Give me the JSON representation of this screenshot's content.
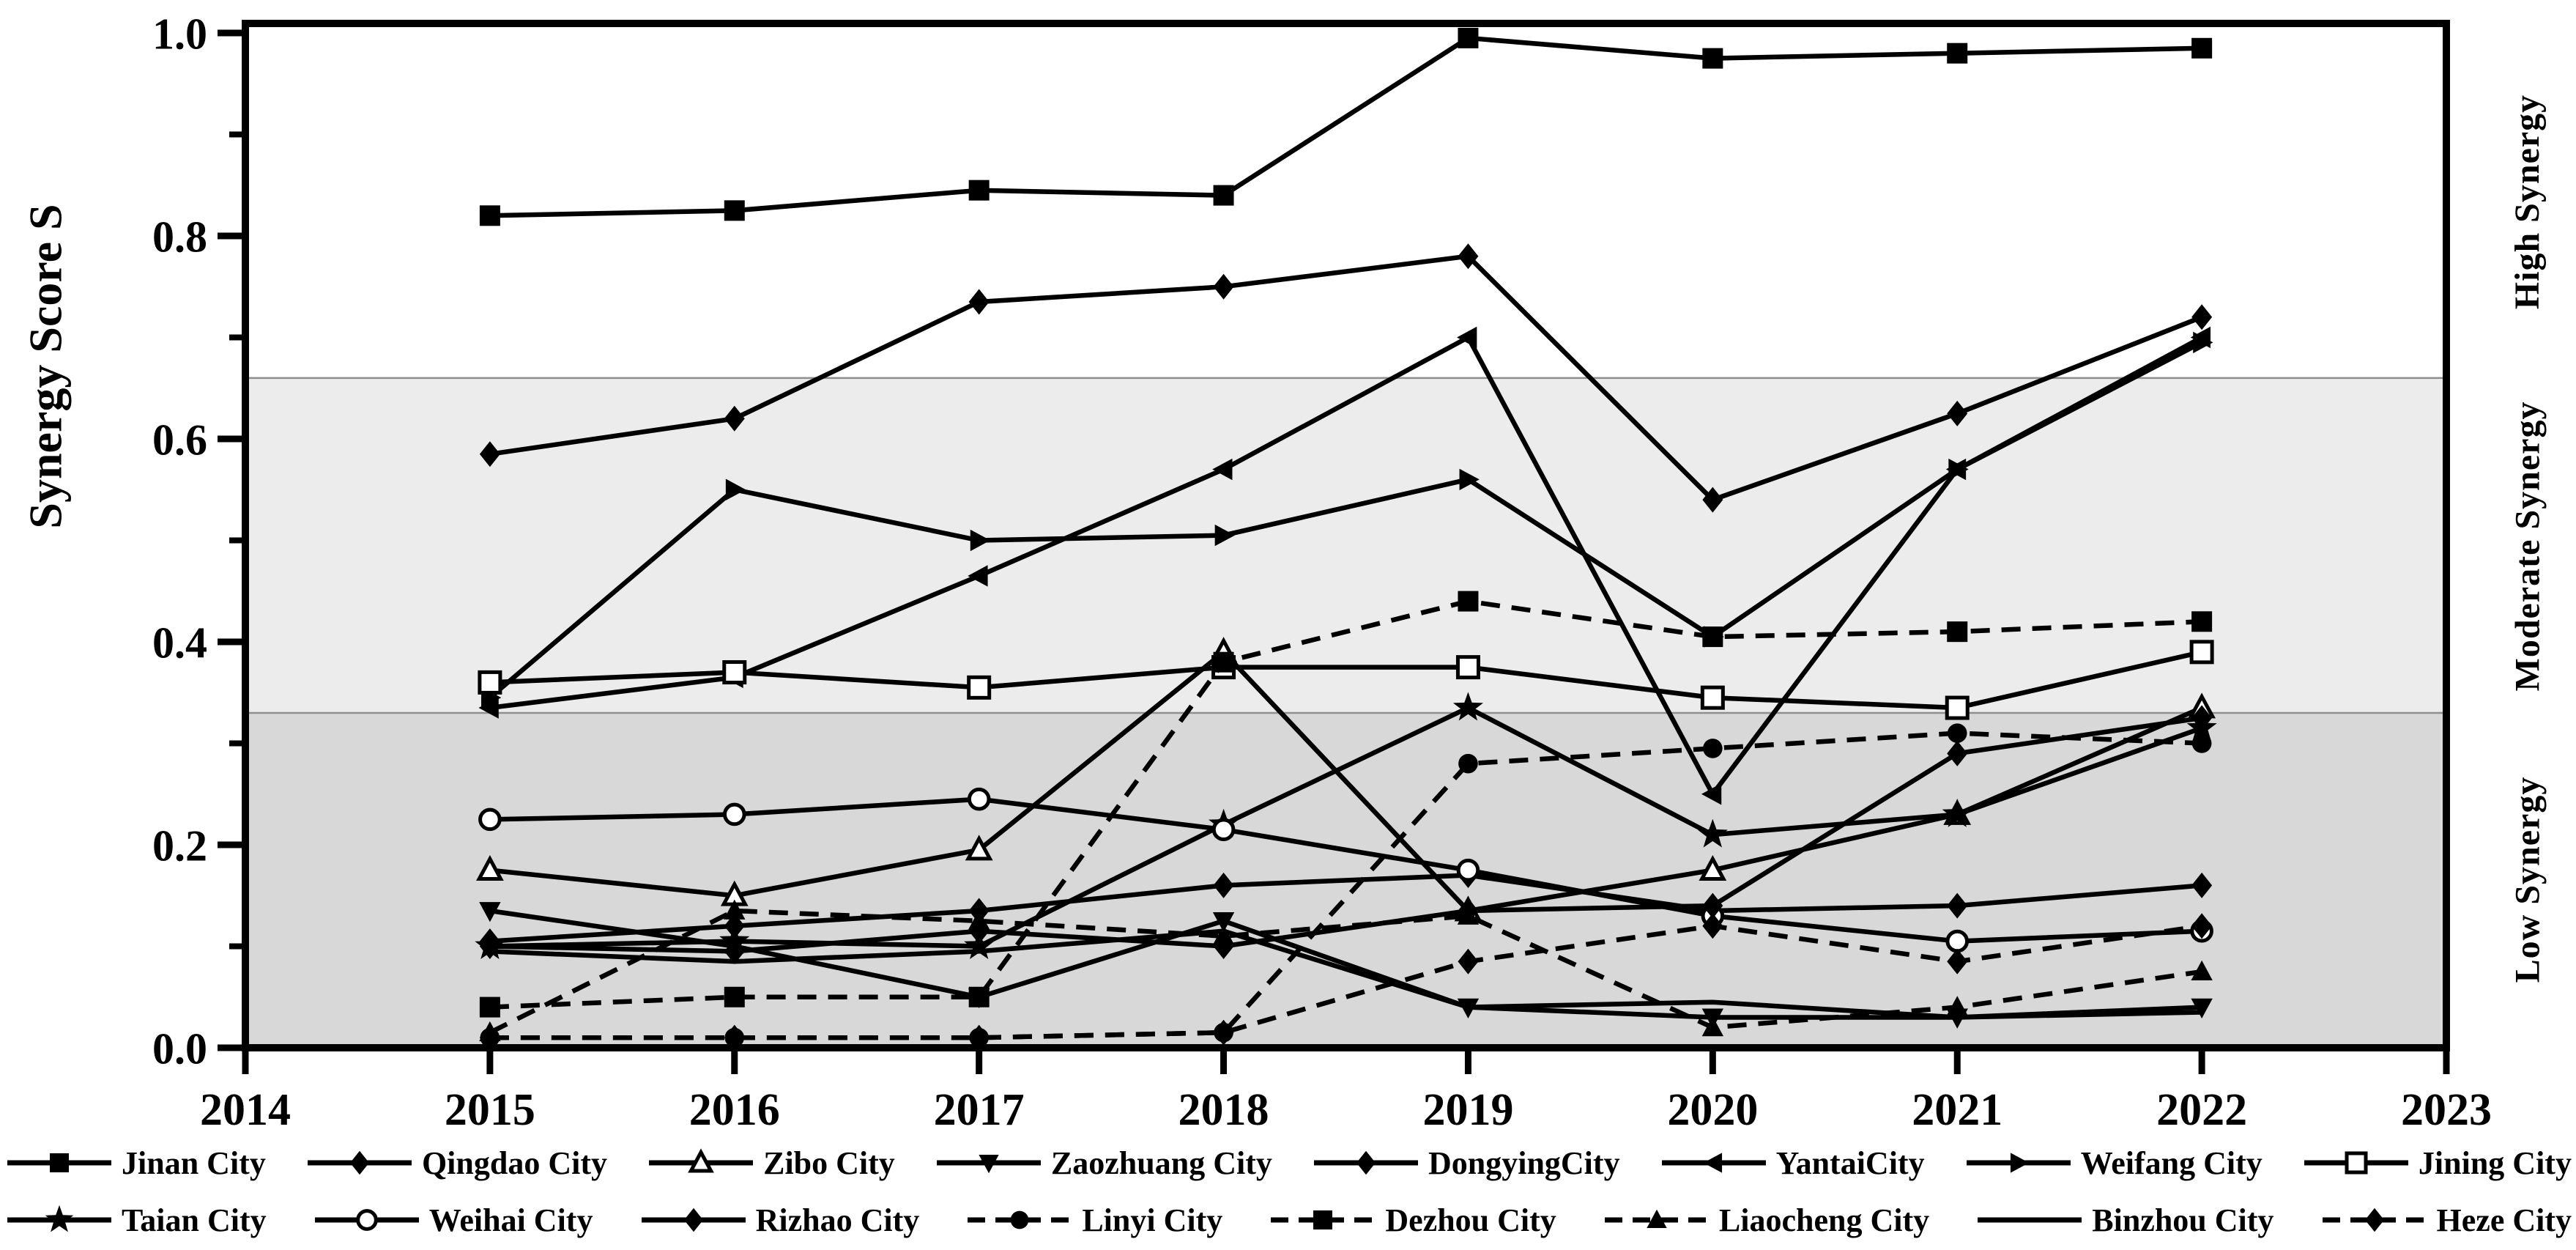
{
  "figure_name": "city-synergy-score-line-chart",
  "colors": {
    "line": "#000000",
    "frame": "#000000",
    "band_high": "#ffffff",
    "band_moderate": "#ececec",
    "band_low": "#d8d8d8",
    "band_boundary": "#8f8f8f",
    "text": "#000000"
  },
  "chart_data": {
    "type": "line",
    "title": "",
    "xlabel": "",
    "ylabel": "Synergy Score S",
    "xlim": [
      2014,
      2023
    ],
    "ylim": [
      0.0,
      1.0
    ],
    "grid": false,
    "legend_position": "bottom",
    "x_axis_ticks": [
      "2014",
      "2015",
      "2016",
      "2017",
      "2018",
      "2019",
      "2020",
      "2021",
      "2022",
      "2023"
    ],
    "y_axis_ticks": [
      "0.0",
      "0.2",
      "0.4",
      "0.6",
      "0.8",
      "1.0"
    ],
    "y_minor_tick_step": 0.1,
    "x": [
      2015,
      2016,
      2017,
      2018,
      2019,
      2020,
      2021,
      2022
    ],
    "bands": [
      {
        "label": "High Synergy",
        "from": 0.66,
        "to": 1.0,
        "color_key": "band_high"
      },
      {
        "label": "Moderate Synergy",
        "from": 0.33,
        "to": 0.66,
        "color_key": "band_moderate"
      },
      {
        "label": "Low Synergy",
        "from": 0.0,
        "to": 0.33,
        "color_key": "band_low"
      }
    ],
    "series": [
      {
        "name": "Jinan City",
        "marker": "square-filled",
        "line": "solid",
        "values": [
          0.82,
          0.825,
          0.845,
          0.84,
          0.995,
          0.975,
          0.98,
          0.985
        ]
      },
      {
        "name": "Qingdao City",
        "marker": "diamond-filled",
        "line": "solid",
        "values": [
          0.585,
          0.62,
          0.735,
          0.75,
          0.78,
          0.54,
          0.625,
          0.72
        ]
      },
      {
        "name": "Zibo City",
        "marker": "triangle-up-open",
        "line": "solid",
        "values": [
          0.175,
          0.15,
          0.195,
          0.39,
          0.135,
          0.175,
          0.23,
          0.335
        ]
      },
      {
        "name": "Zaozhuang City",
        "marker": "triangle-down-filled",
        "line": "solid",
        "values": [
          0.135,
          0.1,
          0.05,
          0.125,
          0.04,
          0.03,
          0.03,
          0.04
        ]
      },
      {
        "name": "DongyingCity",
        "marker": "diamond-filled",
        "line": "solid",
        "values": [
          0.105,
          0.12,
          0.135,
          0.16,
          0.17,
          0.135,
          0.14,
          0.16
        ]
      },
      {
        "name": "YantaiCity",
        "marker": "triangle-left-filled",
        "line": "solid",
        "values": [
          0.335,
          0.365,
          0.465,
          0.57,
          0.7,
          0.25,
          0.57,
          0.7
        ]
      },
      {
        "name": "Weifang City",
        "marker": "triangle-right-filled",
        "line": "solid",
        "values": [
          0.345,
          0.55,
          0.5,
          0.505,
          0.56,
          0.405,
          0.57,
          0.695
        ]
      },
      {
        "name": "Jining City",
        "marker": "square-open",
        "line": "solid",
        "values": [
          0.36,
          0.37,
          0.355,
          0.375,
          0.375,
          0.345,
          0.335,
          0.39
        ]
      },
      {
        "name": "Taian City",
        "marker": "star-filled",
        "line": "solid",
        "values": [
          0.1,
          0.105,
          0.1,
          0.22,
          0.335,
          0.21,
          0.23,
          0.315
        ]
      },
      {
        "name": "Weihai City",
        "marker": "circle-open",
        "line": "solid",
        "values": [
          0.225,
          0.23,
          0.245,
          0.215,
          0.175,
          0.13,
          0.105,
          0.115
        ]
      },
      {
        "name": "Rizhao City",
        "marker": "diamond-filled",
        "line": "solid",
        "values": [
          0.1,
          0.095,
          0.115,
          0.1,
          0.135,
          0.14,
          0.29,
          0.325
        ]
      },
      {
        "name": "Linyi City",
        "marker": "circle-filled",
        "line": "dashed",
        "values": [
          0.01,
          0.01,
          0.01,
          0.015,
          0.28,
          0.295,
          0.31,
          0.3
        ]
      },
      {
        "name": "Dezhou City",
        "marker": "square-filled",
        "line": "dashed",
        "values": [
          0.04,
          0.05,
          0.05,
          0.38,
          0.44,
          0.405,
          0.41,
          0.42
        ]
      },
      {
        "name": "Liaocheng City",
        "marker": "triangle-up-filled",
        "line": "dashed",
        "values": [
          0.015,
          0.135,
          0.125,
          0.11,
          0.13,
          0.02,
          0.04,
          0.075
        ]
      },
      {
        "name": "Binzhou City",
        "marker": "none",
        "line": "solid",
        "values": [
          0.095,
          0.085,
          0.095,
          0.115,
          0.04,
          0.045,
          0.03,
          0.035
        ]
      },
      {
        "name": "Heze City",
        "marker": "diamond-filled",
        "line": "dashed",
        "values": [
          0.01,
          0.01,
          0.01,
          0.015,
          0.085,
          0.12,
          0.085,
          0.12
        ]
      }
    ]
  }
}
